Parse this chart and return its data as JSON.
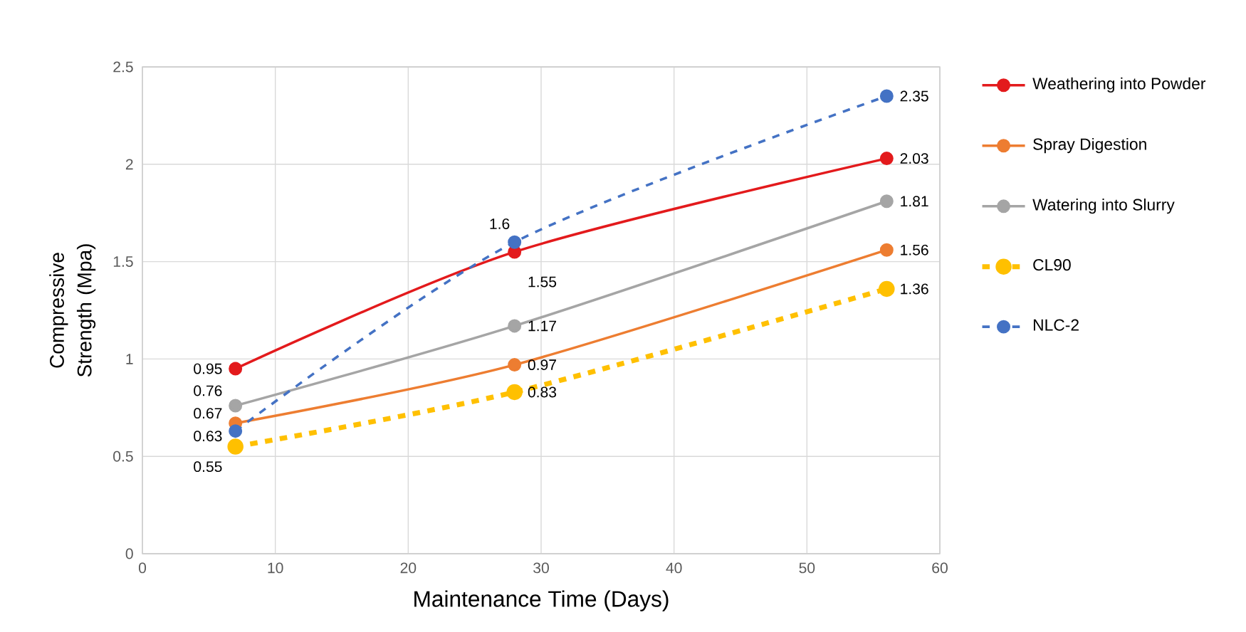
{
  "chart_data": {
    "type": "line",
    "xlabel": "Maintenance Time (Days)",
    "ylabel": "Compressive Strength (Mpa)",
    "x": [
      7,
      28,
      56
    ],
    "xlim": [
      0,
      60
    ],
    "xticks": [
      0,
      10,
      20,
      30,
      40,
      50,
      60
    ],
    "ylim": [
      0,
      2.5
    ],
    "yticks": [
      0,
      0.5,
      1,
      1.5,
      2,
      2.5
    ],
    "grid": true,
    "legend": "right",
    "marker": "circle",
    "data_labels": true,
    "series": [
      {
        "name": "Weathering into Powder",
        "color": "#e31a1c",
        "values": [
          0.95,
          1.55,
          2.03
        ],
        "line_style": "solid"
      },
      {
        "name": "Spray Digestion",
        "color": "#ed7d31",
        "values": [
          0.67,
          0.97,
          1.56
        ],
        "line_style": "solid"
      },
      {
        "name": "Watering into Slurry",
        "color": "#a5a5a5",
        "values": [
          0.76,
          1.17,
          1.81
        ],
        "line_style": "solid"
      },
      {
        "name": "CL90",
        "color": "#ffc000",
        "values": [
          0.55,
          0.83,
          1.36
        ],
        "line_style": "dashed"
      },
      {
        "name": "NLC-2",
        "color": "#4472c4",
        "values": [
          0.63,
          1.6,
          2.35
        ],
        "line_style": "dashed"
      }
    ]
  }
}
